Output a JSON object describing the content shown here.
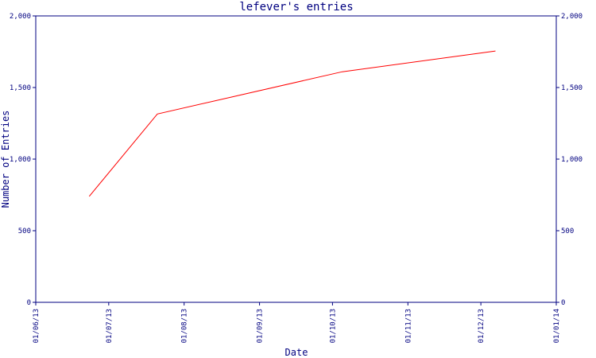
{
  "chart_data": {
    "type": "line",
    "title": "lefever's entries",
    "xlabel": "Date",
    "ylabel": "Number of Entries",
    "ylim": [
      0,
      2000
    ],
    "xlim": [
      "2013-06-01",
      "2014-01-01"
    ],
    "y_ticks": [
      0,
      500,
      1000,
      1500,
      2000
    ],
    "y_tick_labels": [
      "0",
      "500",
      "1,000",
      "1,500",
      "2,000"
    ],
    "x_ticks": [
      "2013-06-01",
      "2013-07-01",
      "2013-08-01",
      "2013-09-01",
      "2013-10-01",
      "2013-11-01",
      "2013-12-01",
      "2014-01-01"
    ],
    "x_tick_labels": [
      "01/06/13",
      "01/07/13",
      "01/08/13",
      "01/09/13",
      "01/10/13",
      "01/11/13",
      "01/12/13",
      "01/01/14"
    ],
    "grid": false,
    "right_axis_mirrored": true,
    "series": [
      {
        "color": "#ff0000",
        "x": [
          "2013-06-23",
          "2013-07-21",
          "2013-10-05",
          "2013-12-07"
        ],
        "y": [
          740,
          1315,
          1610,
          1755
        ]
      }
    ]
  },
  "colors": {
    "axis": "#000080",
    "line": "#ff0000",
    "background": "#ffffff"
  }
}
